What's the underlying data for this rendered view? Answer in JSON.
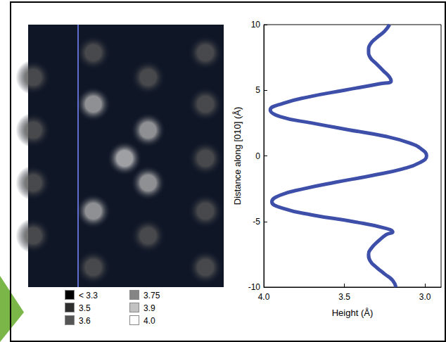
{
  "chart_data": [
    {
      "type": "scatter",
      "x": [
        0.4,
        0.4,
        0.4,
        0.4,
        5.0,
        5.0,
        5.0,
        5.0,
        7.4,
        9.2,
        9.2,
        9.2,
        9.2,
        13.6,
        13.6,
        13.6,
        13.6,
        13.6
      ],
      "values": [
        5.98,
        1.96,
        -2.06,
        -6.09,
        7.86,
        3.94,
        -4.21,
        -8.5,
        -0.19,
        5.98,
        1.96,
        -2.06,
        -6.09,
        7.86,
        3.94,
        -0.19,
        -4.21,
        -8.5
      ],
      "heights": [
        3.6,
        3.6,
        3.6,
        3.6,
        3.6,
        3.85,
        3.85,
        3.6,
        3.9,
        3.6,
        3.85,
        3.85,
        3.6,
        3.6,
        3.6,
        3.6,
        3.6,
        3.6
      ],
      "xlim": [
        0,
        15
      ],
      "ylim": [
        -10,
        10
      ],
      "tick_labels": false,
      "profile_x": 3.83,
      "color": "#5f6fd2",
      "color_scale": [
        {
          "value": 3.3,
          "label": "< 3.3",
          "color": "#000000"
        },
        {
          "value": 3.5,
          "color": "#2e2e2e"
        },
        {
          "value": 3.6,
          "color": "#555555"
        },
        {
          "value": 3.75,
          "color": "#858585"
        },
        {
          "value": 3.9,
          "color": "#c2c2c2"
        },
        {
          "value": 4.0,
          "label": "4.0",
          "color": "#ffffff"
        }
      ]
    },
    {
      "type": "line",
      "x": [
        3.18,
        3.2,
        3.25,
        3.3,
        3.34,
        3.35,
        3.33,
        3.29,
        3.24,
        3.2,
        3.25,
        3.45,
        3.7,
        3.88,
        3.95,
        3.9,
        3.75,
        3.55,
        3.33,
        3.14,
        3.03,
        2.99,
        3.02,
        3.1,
        3.25,
        3.48,
        3.7,
        3.9,
        3.96,
        3.88,
        3.72,
        3.5,
        3.28,
        3.21,
        3.22,
        3.26,
        3.3,
        3.34,
        3.35,
        3.34,
        3.3,
        3.25,
        3.22
      ],
      "values": [
        -10,
        -9.5,
        -9,
        -8.5,
        -8,
        -7.5,
        -7,
        -6.5,
        -6,
        -5.8,
        -5.5,
        -5,
        -4.5,
        -4,
        -3.5,
        -3,
        -2.5,
        -2,
        -1.5,
        -1,
        -0.5,
        0,
        0.5,
        1,
        1.5,
        2,
        2.5,
        3,
        3.5,
        4,
        4.5,
        5,
        5.5,
        5.7,
        6,
        6.5,
        7,
        7.5,
        8,
        8.5,
        9,
        9.5,
        10
      ],
      "xlabel": "Height (Å)",
      "ylabel": "Distance along [010] (Å)",
      "xlim": [
        4.0,
        2.9
      ],
      "xticks": [
        {
          "value": 4,
          "label": "4.0"
        },
        {
          "value": 3.5,
          "label": "3.5"
        },
        {
          "value": 3,
          "label": "3.0"
        }
      ],
      "ylim": [
        -10,
        10
      ],
      "yticks": [
        -10,
        -5,
        0,
        5,
        10
      ],
      "color": "#3d4fa8",
      "grid": false
    }
  ]
}
